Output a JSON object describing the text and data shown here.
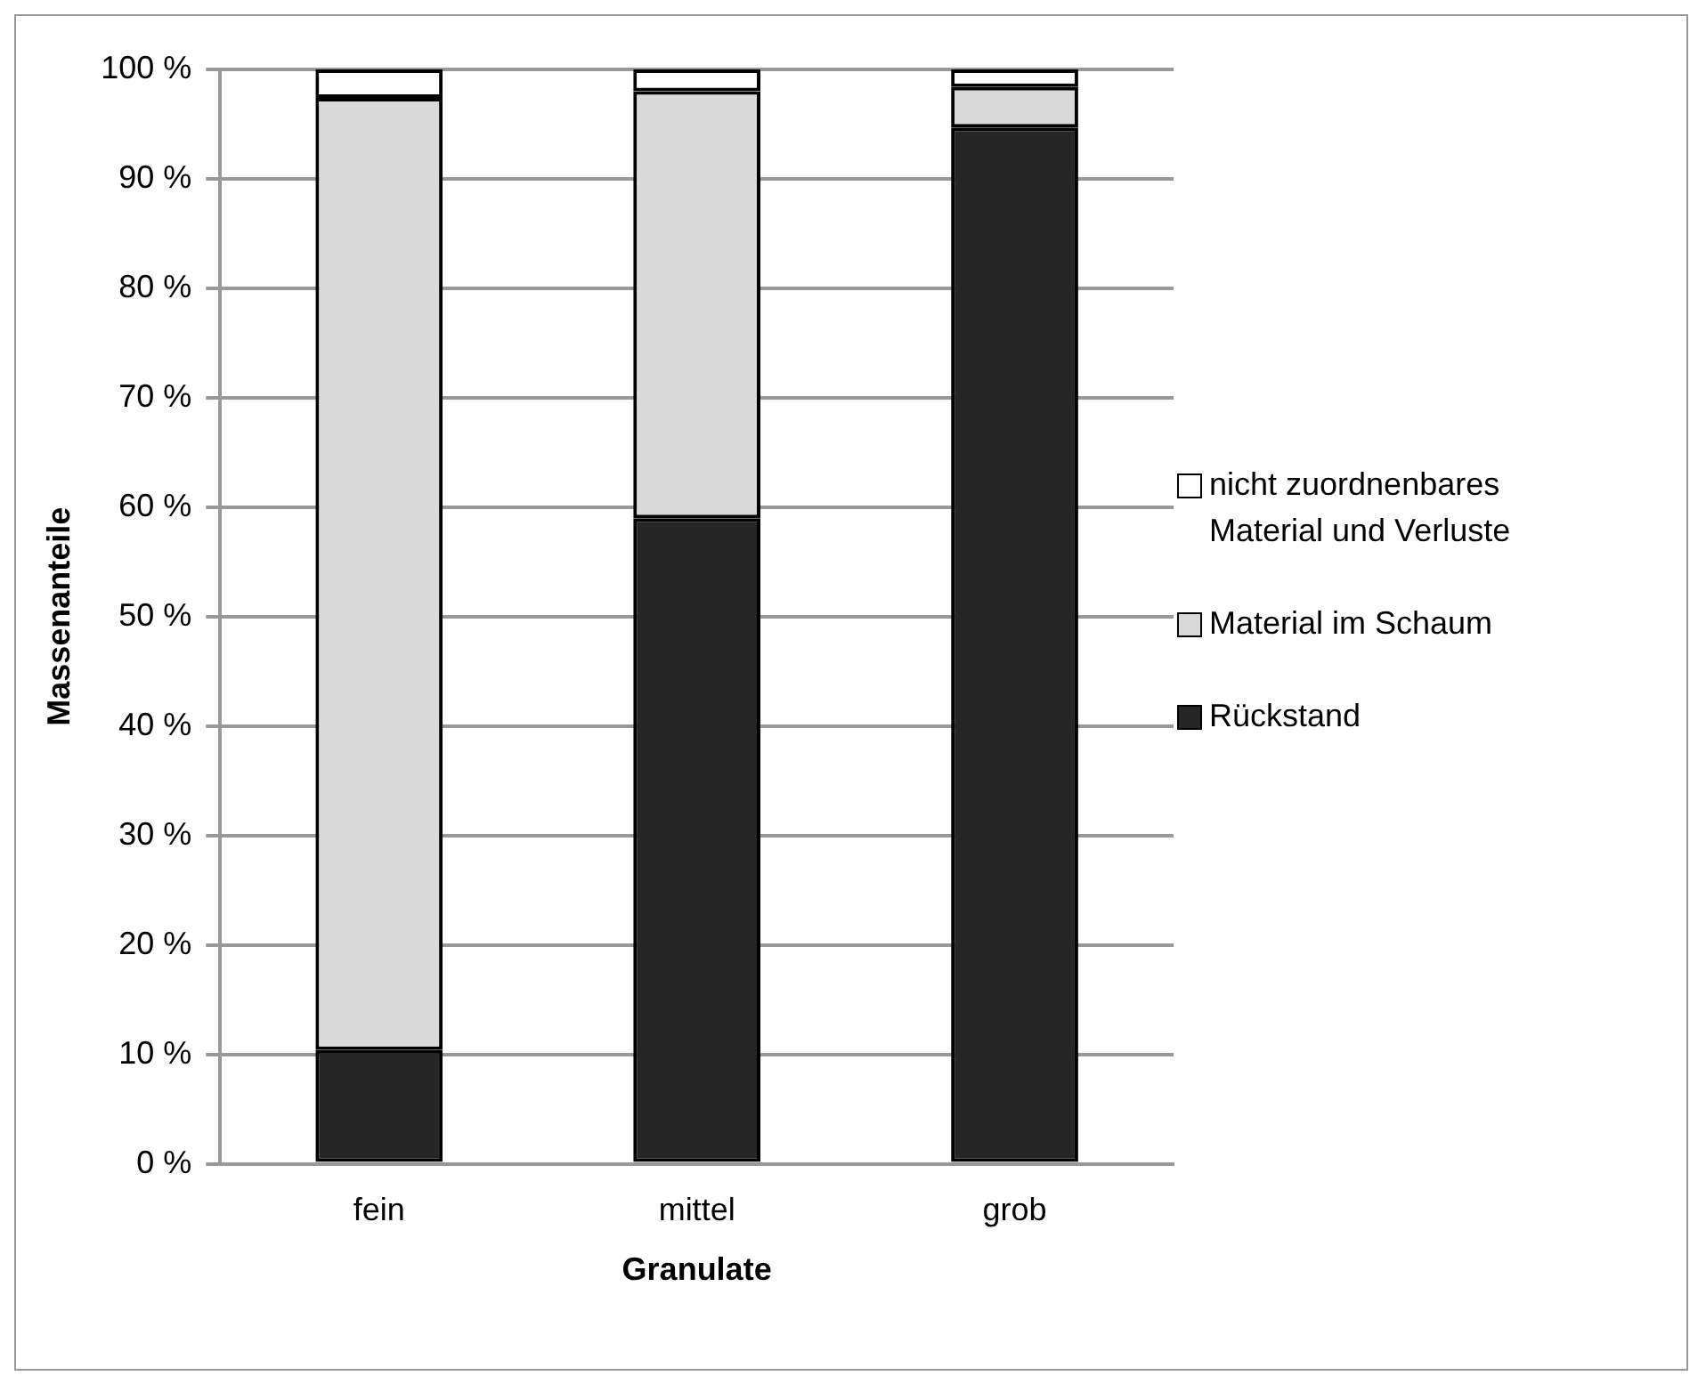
{
  "chart_data": {
    "type": "bar",
    "stacked": true,
    "xlabel": "Granulate",
    "ylabel": "Massenanteile",
    "categories": [
      "fein",
      "mittel",
      "grob"
    ],
    "series": [
      {
        "name": "Rückstand",
        "color": "#262626",
        "values": [
          10.4,
          59.0,
          94.7
        ]
      },
      {
        "name": "Material im Schaum",
        "color": "#d9d9d9",
        "values": [
          87.0,
          39.0,
          3.7
        ]
      },
      {
        "name": "nicht zuordnenbares Material und Verluste",
        "color": "#ffffff",
        "values": [
          2.6,
          2.0,
          1.6
        ]
      }
    ],
    "ylim": [
      0,
      100
    ],
    "yticks": [
      {
        "value": 0,
        "label": "0 %"
      },
      {
        "value": 10,
        "label": "10 %"
      },
      {
        "value": 20,
        "label": "20 %"
      },
      {
        "value": 30,
        "label": "30 %"
      },
      {
        "value": 40,
        "label": "40 %"
      },
      {
        "value": 50,
        "label": "50 %"
      },
      {
        "value": 60,
        "label": "60 %"
      },
      {
        "value": 70,
        "label": "70 %"
      },
      {
        "value": 80,
        "label": "80 %"
      },
      {
        "value": 90,
        "label": "90 %"
      },
      {
        "value": 100,
        "label": "100 %"
      }
    ],
    "grid": "y",
    "legend": "right"
  }
}
